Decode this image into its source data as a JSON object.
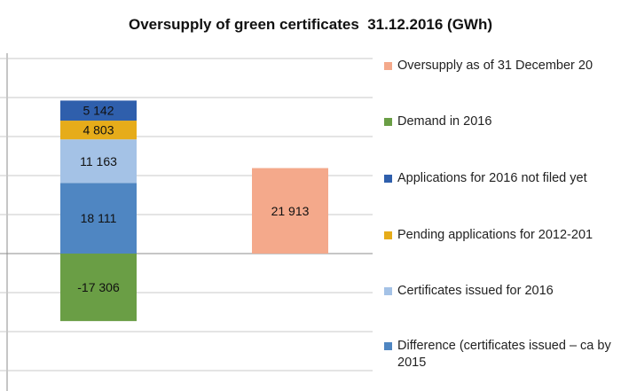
{
  "chart_data": {
    "type": "bar",
    "title": "Oversupply of green certificates  31.12.2016 (GWh)",
    "stacked": true,
    "grid": true,
    "legend_position": "right",
    "ylim": [
      -35000,
      40000
    ],
    "categories": [
      "",
      ""
    ],
    "series": [
      {
        "name": "Oversupply as of 31 December 20",
        "color": "#f4a98b",
        "values": [
          0,
          21913
        ],
        "labels": [
          "",
          "21 913"
        ]
      },
      {
        "name": "Demand in 2016",
        "color": "#6a9e45",
        "values": [
          -17306,
          0
        ],
        "labels": [
          "-17 306",
          ""
        ]
      },
      {
        "name": "Applications for 2016 not filed yet",
        "color": "#2f5fac",
        "values": [
          5142,
          0
        ],
        "labels": [
          "5 142",
          ""
        ]
      },
      {
        "name": "Pending applications for 2012-201",
        "color": "#e6ac1a",
        "values": [
          4803,
          0
        ],
        "labels": [
          "4 803",
          ""
        ]
      },
      {
        "name": "Certificates issued for 2016",
        "color": "#a4c2e6",
        "values": [
          11163,
          0
        ],
        "labels": [
          "11 163",
          ""
        ]
      },
      {
        "name": "Difference (certificates issued – ca by 2015",
        "color": "#4f86c2",
        "values": [
          18111,
          0
        ],
        "labels": [
          "18 111",
          ""
        ]
      }
    ]
  }
}
